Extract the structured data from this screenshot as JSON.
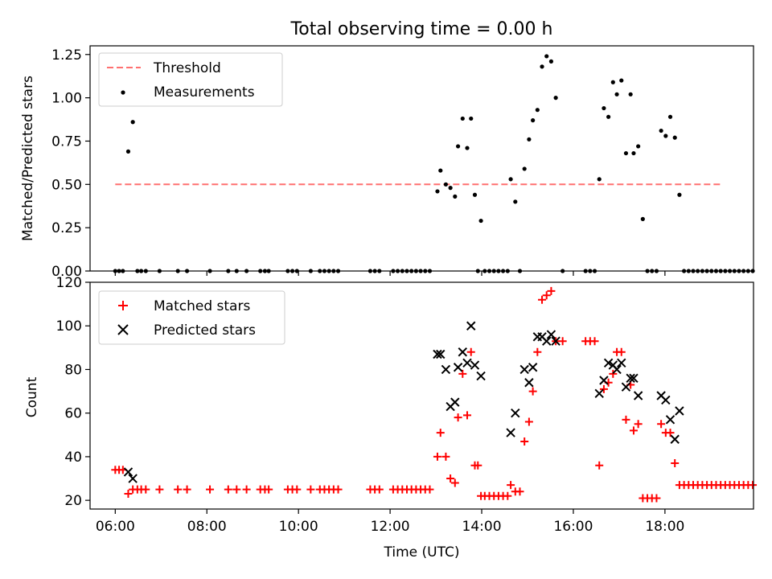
{
  "chart_data": [
    {
      "type": "scatter",
      "title": "Total observing time = 0.00 h",
      "xlabel": "",
      "ylabel": "Matched/Predicted stars",
      "xlim": [
        "05:27",
        "19:56"
      ],
      "ylim": [
        0,
        1.3
      ],
      "x_ticks": [
        "06:00",
        "08:00",
        "10:00",
        "12:00",
        "14:00",
        "16:00",
        "18:00"
      ],
      "y_ticks": [
        "0.00",
        "0.25",
        "0.50",
        "0.75",
        "1.00",
        "1.25"
      ],
      "grid": false,
      "legend": "upper left",
      "series": [
        {
          "name": "Threshold",
          "kind": "dashed-line",
          "color": "#ff7070",
          "points": [
            [
              "06:00",
              0.5
            ],
            [
              "19:15",
              0.5
            ]
          ]
        },
        {
          "name": "Measurements",
          "kind": "dot",
          "color": "#000000",
          "points": [
            [
              "06:00",
              0
            ],
            [
              "06:05",
              0
            ],
            [
              "06:10",
              0
            ],
            [
              "06:17",
              0.69
            ],
            [
              "06:23",
              0.86
            ],
            [
              "06:29",
              0
            ],
            [
              "06:34",
              0
            ],
            [
              "06:40",
              0
            ],
            [
              "06:58",
              0
            ],
            [
              "07:22",
              0
            ],
            [
              "07:34",
              0
            ],
            [
              "08:04",
              0
            ],
            [
              "08:28",
              0
            ],
            [
              "08:39",
              0
            ],
            [
              "08:52",
              0
            ],
            [
              "09:10",
              0
            ],
            [
              "09:16",
              0
            ],
            [
              "09:21",
              0
            ],
            [
              "09:46",
              0
            ],
            [
              "09:52",
              0
            ],
            [
              "09:58",
              0
            ],
            [
              "10:16",
              0
            ],
            [
              "10:28",
              0
            ],
            [
              "10:34",
              0
            ],
            [
              "10:40",
              0
            ],
            [
              "10:46",
              0
            ],
            [
              "10:52",
              0
            ],
            [
              "11:34",
              0
            ],
            [
              "11:40",
              0
            ],
            [
              "11:46",
              0
            ],
            [
              "12:04",
              0
            ],
            [
              "12:10",
              0
            ],
            [
              "12:16",
              0
            ],
            [
              "12:22",
              0
            ],
            [
              "12:28",
              0
            ],
            [
              "12:34",
              0
            ],
            [
              "12:40",
              0
            ],
            [
              "12:46",
              0
            ],
            [
              "12:52",
              0
            ],
            [
              "13:02",
              0.46
            ],
            [
              "13:06",
              0.58
            ],
            [
              "13:13",
              0.5
            ],
            [
              "13:19",
              0.48
            ],
            [
              "13:25",
              0.43
            ],
            [
              "13:29",
              0.72
            ],
            [
              "13:35",
              0.88
            ],
            [
              "13:41",
              0.71
            ],
            [
              "13:46",
              0.88
            ],
            [
              "13:51",
              0.44
            ],
            [
              "13:55",
              0
            ],
            [
              "13:59",
              0.29
            ],
            [
              "14:04",
              0
            ],
            [
              "14:10",
              0
            ],
            [
              "14:16",
              0
            ],
            [
              "14:22",
              0
            ],
            [
              "14:28",
              0
            ],
            [
              "14:34",
              0
            ],
            [
              "14:38",
              0.53
            ],
            [
              "14:44",
              0.4
            ],
            [
              "14:50",
              0
            ],
            [
              "14:56",
              0.59
            ],
            [
              "15:02",
              0.76
            ],
            [
              "15:07",
              0.87
            ],
            [
              "15:13",
              0.93
            ],
            [
              "15:19",
              1.18
            ],
            [
              "15:25",
              1.24
            ],
            [
              "15:31",
              1.21
            ],
            [
              "15:37",
              1.0
            ],
            [
              "15:46",
              0
            ],
            [
              "16:16",
              0
            ],
            [
              "16:22",
              0
            ],
            [
              "16:28",
              0
            ],
            [
              "16:34",
              0.53
            ],
            [
              "16:40",
              0.94
            ],
            [
              "16:46",
              0.89
            ],
            [
              "16:52",
              1.09
            ],
            [
              "16:57",
              1.02
            ],
            [
              "17:03",
              1.1
            ],
            [
              "17:09",
              0.68
            ],
            [
              "17:15",
              1.02
            ],
            [
              "17:19",
              0.68
            ],
            [
              "17:25",
              0.72
            ],
            [
              "17:31",
              0.3
            ],
            [
              "17:37",
              0
            ],
            [
              "17:43",
              0
            ],
            [
              "17:49",
              0
            ],
            [
              "17:55",
              0.81
            ],
            [
              "18:01",
              0.78
            ],
            [
              "18:07",
              0.89
            ],
            [
              "18:13",
              0.77
            ],
            [
              "18:19",
              0.44
            ],
            [
              "18:25",
              0
            ],
            [
              "18:31",
              0
            ],
            [
              "18:37",
              0
            ],
            [
              "18:43",
              0
            ],
            [
              "18:49",
              0
            ],
            [
              "18:55",
              0
            ],
            [
              "19:01",
              0
            ],
            [
              "19:07",
              0
            ],
            [
              "19:13",
              0
            ],
            [
              "19:19",
              0
            ],
            [
              "19:25",
              0
            ],
            [
              "19:31",
              0
            ],
            [
              "19:37",
              0
            ],
            [
              "19:43",
              0
            ],
            [
              "19:49",
              0
            ],
            [
              "19:55",
              0
            ]
          ]
        }
      ]
    },
    {
      "type": "scatter",
      "title": "",
      "xlabel": "Time (UTC)",
      "ylabel": "Count",
      "xlim": [
        "05:27",
        "19:56"
      ],
      "ylim": [
        16,
        120
      ],
      "x_ticks": [
        "06:00",
        "08:00",
        "10:00",
        "12:00",
        "14:00",
        "16:00",
        "18:00"
      ],
      "y_ticks": [
        "20",
        "40",
        "60",
        "80",
        "100",
        "120"
      ],
      "grid": false,
      "legend": "upper left",
      "series": [
        {
          "name": "Matched stars",
          "kind": "plus",
          "color": "#ff0000",
          "points": [
            [
              "06:00",
              34
            ],
            [
              "06:05",
              34
            ],
            [
              "06:10",
              34
            ],
            [
              "06:17",
              23
            ],
            [
              "06:23",
              25
            ],
            [
              "06:29",
              25
            ],
            [
              "06:34",
              25
            ],
            [
              "06:40",
              25
            ],
            [
              "06:58",
              25
            ],
            [
              "07:22",
              25
            ],
            [
              "07:34",
              25
            ],
            [
              "08:04",
              25
            ],
            [
              "08:28",
              25
            ],
            [
              "08:39",
              25
            ],
            [
              "08:52",
              25
            ],
            [
              "09:10",
              25
            ],
            [
              "09:16",
              25
            ],
            [
              "09:21",
              25
            ],
            [
              "09:46",
              25
            ],
            [
              "09:52",
              25
            ],
            [
              "09:58",
              25
            ],
            [
              "10:16",
              25
            ],
            [
              "10:28",
              25
            ],
            [
              "10:34",
              25
            ],
            [
              "10:40",
              25
            ],
            [
              "10:46",
              25
            ],
            [
              "10:52",
              25
            ],
            [
              "11:34",
              25
            ],
            [
              "11:40",
              25
            ],
            [
              "11:46",
              25
            ],
            [
              "12:04",
              25
            ],
            [
              "12:10",
              25
            ],
            [
              "12:16",
              25
            ],
            [
              "12:22",
              25
            ],
            [
              "12:28",
              25
            ],
            [
              "12:34",
              25
            ],
            [
              "12:40",
              25
            ],
            [
              "12:46",
              25
            ],
            [
              "12:52",
              25
            ],
            [
              "13:02",
              40
            ],
            [
              "13:06",
              51
            ],
            [
              "13:13",
              40
            ],
            [
              "13:19",
              30
            ],
            [
              "13:25",
              28
            ],
            [
              "13:29",
              58
            ],
            [
              "13:35",
              78
            ],
            [
              "13:41",
              59
            ],
            [
              "13:46",
              88
            ],
            [
              "13:51",
              36
            ],
            [
              "13:55",
              36
            ],
            [
              "13:59",
              22
            ],
            [
              "14:04",
              22
            ],
            [
              "14:10",
              22
            ],
            [
              "14:16",
              22
            ],
            [
              "14:22",
              22
            ],
            [
              "14:28",
              22
            ],
            [
              "14:34",
              22
            ],
            [
              "14:38",
              27
            ],
            [
              "14:44",
              24
            ],
            [
              "14:50",
              24
            ],
            [
              "14:56",
              47
            ],
            [
              "15:02",
              56
            ],
            [
              "15:07",
              70
            ],
            [
              "15:13",
              88
            ],
            [
              "15:19",
              112
            ],
            [
              "15:25",
              114
            ],
            [
              "15:31",
              116
            ],
            [
              "15:37",
              93
            ],
            [
              "15:46",
              93
            ],
            [
              "16:16",
              93
            ],
            [
              "16:22",
              93
            ],
            [
              "16:28",
              93
            ],
            [
              "16:34",
              36
            ],
            [
              "16:40",
              71
            ],
            [
              "16:46",
              74
            ],
            [
              "16:52",
              78
            ],
            [
              "16:57",
              88
            ],
            [
              "17:03",
              88
            ],
            [
              "17:09",
              57
            ],
            [
              "17:15",
              73
            ],
            [
              "17:19",
              52
            ],
            [
              "17:25",
              55
            ],
            [
              "17:31",
              21
            ],
            [
              "17:37",
              21
            ],
            [
              "17:43",
              21
            ],
            [
              "17:49",
              21
            ],
            [
              "17:55",
              55
            ],
            [
              "18:01",
              51
            ],
            [
              "18:07",
              51
            ],
            [
              "18:13",
              37
            ],
            [
              "18:19",
              27
            ],
            [
              "18:25",
              27
            ],
            [
              "18:31",
              27
            ],
            [
              "18:37",
              27
            ],
            [
              "18:43",
              27
            ],
            [
              "18:49",
              27
            ],
            [
              "18:55",
              27
            ],
            [
              "19:01",
              27
            ],
            [
              "19:07",
              27
            ],
            [
              "19:13",
              27
            ],
            [
              "19:19",
              27
            ],
            [
              "19:25",
              27
            ],
            [
              "19:31",
              27
            ],
            [
              "19:37",
              27
            ],
            [
              "19:43",
              27
            ],
            [
              "19:49",
              27
            ],
            [
              "19:55",
              27
            ]
          ]
        },
        {
          "name": "Predicted stars",
          "kind": "cross",
          "color": "#000000",
          "points": [
            [
              "06:17",
              33
            ],
            [
              "06:23",
              30
            ],
            [
              "13:02",
              87
            ],
            [
              "13:06",
              87
            ],
            [
              "13:13",
              80
            ],
            [
              "13:19",
              63
            ],
            [
              "13:25",
              65
            ],
            [
              "13:29",
              81
            ],
            [
              "13:35",
              88
            ],
            [
              "13:41",
              83
            ],
            [
              "13:46",
              100
            ],
            [
              "13:51",
              82
            ],
            [
              "13:59",
              77
            ],
            [
              "14:38",
              51
            ],
            [
              "14:44",
              60
            ],
            [
              "14:56",
              80
            ],
            [
              "15:02",
              74
            ],
            [
              "15:07",
              81
            ],
            [
              "15:13",
              95
            ],
            [
              "15:19",
              95
            ],
            [
              "15:25",
              93
            ],
            [
              "15:31",
              96
            ],
            [
              "15:37",
              93
            ],
            [
              "16:34",
              69
            ],
            [
              "16:40",
              75
            ],
            [
              "16:46",
              83
            ],
            [
              "16:52",
              82
            ],
            [
              "16:57",
              80
            ],
            [
              "17:03",
              83
            ],
            [
              "17:09",
              72
            ],
            [
              "17:15",
              76
            ],
            [
              "17:19",
              76
            ],
            [
              "17:25",
              68
            ],
            [
              "17:55",
              68
            ],
            [
              "18:01",
              66
            ],
            [
              "18:07",
              57
            ],
            [
              "18:13",
              48
            ],
            [
              "18:19",
              61
            ]
          ]
        }
      ]
    }
  ]
}
